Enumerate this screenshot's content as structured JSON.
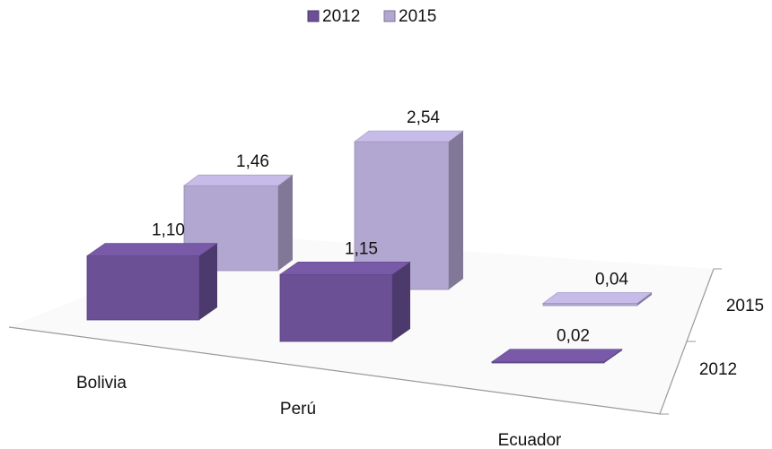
{
  "chart_data": {
    "type": "bar3d",
    "categories": [
      "Bolivia",
      "Perú",
      "Ecuador"
    ],
    "series": [
      {
        "name": "2012",
        "color": "#6b5096",
        "values": [
          1.1,
          1.15,
          0.02
        ],
        "value_labels": [
          "1,10",
          "1,15",
          "0,02"
        ]
      },
      {
        "name": "2015",
        "color": "#b2a7d0",
        "values": [
          1.46,
          2.54,
          0.04
        ],
        "value_labels": [
          "1,46",
          "2,54",
          "0,04"
        ]
      }
    ],
    "legend": "top"
  }
}
